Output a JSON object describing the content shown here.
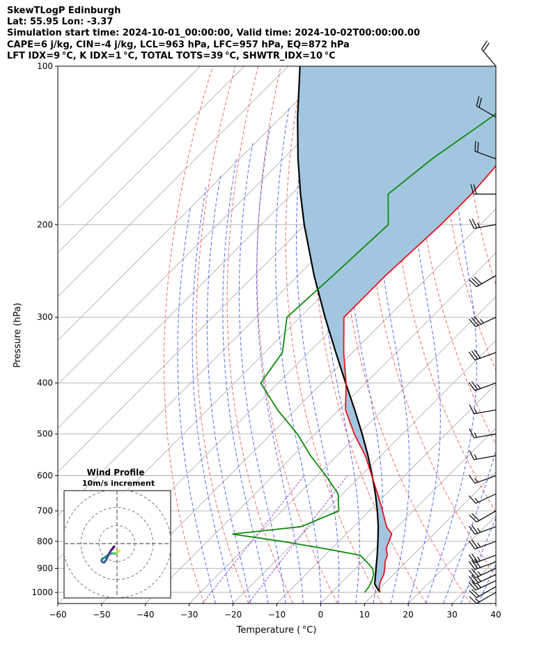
{
  "header": {
    "line1": "SkewTLogP Edinburgh",
    "line2": "Lat: 55.95   Lon: -3.37",
    "line3": "Simulation start time: 2024-10-01_00:00:00, Valid time: 2024-10-02T00:00:00.00",
    "line4": "CAPE=6 j/kg, CIN=-4 j/kg, LCL=963 hPa, LFC=957 hPa, EQ=872 hPa",
    "line5": "LFT IDX=9 °C, K IDX=1 °C, TOTAL TOTS=39 °C, SHWTR_IDX=10 °C"
  },
  "chart_data": {
    "type": "line",
    "xlabel": "Temperature ( °C)",
    "ylabel": "Pressure (hPa)",
    "xlim": [
      -60,
      40
    ],
    "ylim": [
      1050,
      100
    ],
    "y_scale": "log",
    "x_ticks": [
      -60,
      -50,
      -40,
      -30,
      -20,
      -10,
      0,
      10,
      20,
      30,
      40
    ],
    "x_tick_labels": [
      "−60",
      "−50",
      "−40",
      "−30",
      "−20",
      "−10",
      "0",
      "10",
      "20",
      "30",
      "40"
    ],
    "y_ticks": [
      1000,
      900,
      800,
      700,
      600,
      500,
      400,
      300,
      200,
      100
    ],
    "grid": true,
    "colors": {
      "temperature": "#e8101a",
      "dewpoint": "#0a8a0a",
      "parcel": "#000000",
      "cape_fill": "#a3c6e0",
      "dry_adiabat": "#f06a6a",
      "moist_adiabat": "#5566f0",
      "mixing_ratio": "#9b3fc9",
      "isotherm": "#b0b0b0"
    },
    "temperature": {
      "pressure": [
        1000,
        975,
        950,
        925,
        900,
        875,
        850,
        825,
        800,
        775,
        750,
        700,
        650,
        600,
        550,
        500,
        450,
        400,
        350,
        300,
        250,
        200,
        175,
        150,
        125,
        100
      ],
      "temp": [
        11.0,
        9.5,
        8.5,
        7.8,
        6.6,
        5.2,
        4.2,
        2.4,
        1.4,
        0.4,
        -2.5,
        -7.0,
        -12.0,
        -17.5,
        -23.5,
        -31.0,
        -38.5,
        -44.5,
        -52.0,
        -60.0,
        -60.0,
        -59.0,
        -59.0,
        -60.0,
        -63.0,
        -66.0
      ]
    },
    "dewpoint": {
      "pressure": [
        1000,
        975,
        950,
        925,
        900,
        875,
        850,
        825,
        800,
        775,
        750,
        700,
        650,
        600,
        550,
        500,
        450,
        400,
        350,
        300,
        250,
        200,
        175,
        150,
        125,
        100
      ],
      "dewp": [
        7.5,
        7.2,
        6.5,
        5.5,
        3.8,
        1.0,
        -2.0,
        -12.0,
        -23.0,
        -36.0,
        -22.0,
        -17.0,
        -21.0,
        -28.0,
        -36.0,
        -44.0,
        -54.0,
        -64.0,
        -66.0,
        -73.0,
        -72.0,
        -71.0,
        -78.0,
        -76.0,
        -72.0,
        -70.0
      ]
    },
    "parcel": {
      "pressure": [
        1000,
        975,
        963,
        950,
        900,
        850,
        800,
        750,
        700,
        650,
        600,
        550,
        500,
        450,
        400,
        350,
        300,
        250,
        200,
        175,
        150,
        125,
        100
      ],
      "temp": [
        11.0,
        8.8,
        7.8,
        7.2,
        4.6,
        1.9,
        -1.1,
        -4.4,
        -8.2,
        -12.5,
        -17.4,
        -22.9,
        -29.2,
        -36.4,
        -44.6,
        -53.8,
        -64.3,
        -76.3,
        -90.2,
        -98.0,
        -106.6,
        -116.2,
        -127.3
      ]
    },
    "wind_barbs": {
      "pressure": [
        1000,
        975,
        950,
        925,
        900,
        875,
        850,
        800,
        750,
        700,
        650,
        600,
        550,
        500,
        450,
        400,
        350,
        300,
        250,
        200,
        175,
        150,
        125,
        100
      ],
      "speed_kt": [
        15,
        20,
        25,
        25,
        25,
        30,
        25,
        25,
        25,
        20,
        15,
        15,
        15,
        15,
        15,
        25,
        30,
        35,
        30,
        25,
        20,
        20,
        20,
        20
      ],
      "direction_deg": [
        240,
        240,
        245,
        245,
        245,
        250,
        250,
        250,
        250,
        240,
        245,
        250,
        260,
        260,
        260,
        250,
        250,
        245,
        240,
        260,
        270,
        290,
        300,
        320
      ]
    },
    "hodograph": {
      "title": "Wind Profile",
      "subtitle": "10m/s increment",
      "u": [
        1.5,
        1.0,
        0.2,
        -0.5,
        -0.8,
        -1.2,
        -1.8,
        -2.5,
        -3.2,
        -4.0,
        -5.5,
        -7.0,
        -8.4,
        -8.6,
        -8.0,
        -7.0,
        -6.0,
        -5.0,
        -4.0,
        -3.2,
        -3.0,
        -2.6,
        -2.2,
        -2.0,
        -1.5
      ],
      "v": [
        -3.8,
        -4.3,
        -4.8,
        -5.2,
        -5.6,
        -5.6,
        -5.4,
        -5.4,
        -5.5,
        -5.6,
        -6.6,
        -7.8,
        -8.6,
        -9.4,
        -10.4,
        -10.4,
        -9.0,
        -6.8,
        -4.8,
        -3.6,
        -3.3,
        -3.0,
        -2.5,
        -2.0,
        -1.6
      ],
      "ring_step_ms": 10,
      "max_ms": 25
    }
  }
}
